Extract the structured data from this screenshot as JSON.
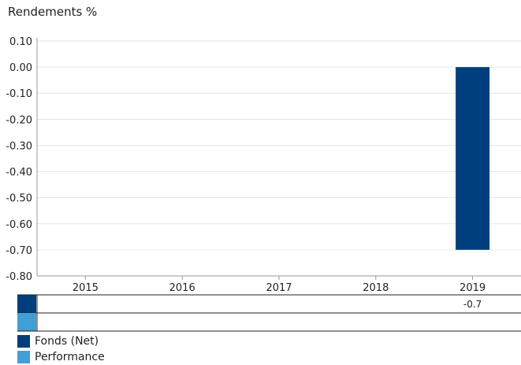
{
  "chart_data": {
    "type": "bar",
    "ylabel": "Rendements %",
    "categories": [
      "2015",
      "2016",
      "2017",
      "2018",
      "2019"
    ],
    "series": [
      {
        "name": "Fonds (Net)",
        "color": "#003f7d",
        "values": [
          null,
          null,
          null,
          null,
          -0.7
        ]
      },
      {
        "name": "Performance",
        "color": "#3f9fd6",
        "values": [
          null,
          null,
          null,
          null,
          null
        ]
      }
    ],
    "ylim": [
      -0.8,
      0.1
    ],
    "yticks": [
      "0.10",
      "0.00",
      "-0.10",
      "-0.20",
      "-0.30",
      "-0.40",
      "-0.50",
      "-0.60",
      "-0.70",
      "-0.80"
    ],
    "grid": true,
    "legend_position": "bottom-left",
    "table": {
      "rows": [
        {
          "series": "Fonds (Net)",
          "cells": [
            "",
            "",
            "",
            "",
            "-0.7"
          ]
        },
        {
          "series": "Performance",
          "cells": [
            "",
            "",
            "",
            "",
            ""
          ]
        }
      ]
    }
  }
}
